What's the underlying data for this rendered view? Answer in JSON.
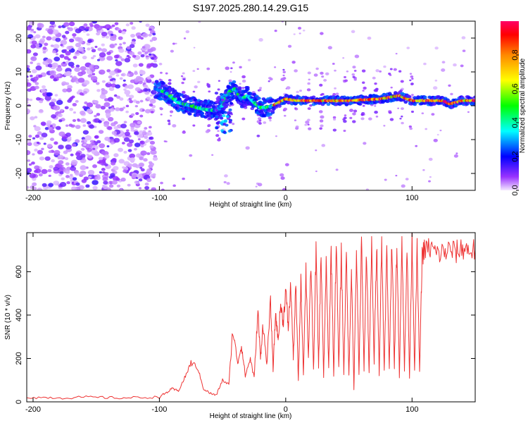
{
  "chart_data": [
    {
      "type": "heatmap",
      "title": "S197.2025.280.14.29.G15",
      "xlabel": "Height of straight line (km)",
      "ylabel": "Frequency (Hz)",
      "xlim": [
        -205,
        150
      ],
      "ylim": [
        -25,
        25
      ],
      "xticks": [
        -200,
        -100,
        0,
        100
      ],
      "yticks": [
        -20,
        -10,
        0,
        10,
        20
      ],
      "colorbar": {
        "label": "Normalized spectral amplitude",
        "range": [
          0,
          1
        ],
        "ticks": [
          0.0,
          0.2,
          0.4,
          0.6,
          0.8
        ]
      },
      "ridge": {
        "description": "dominant frequency track",
        "x": [
          -103,
          -95,
          -85,
          -75,
          -65,
          -55,
          -50,
          -45,
          -40,
          -35,
          -30,
          -25,
          -20,
          -15,
          -10,
          -5,
          0,
          10,
          25,
          50,
          75,
          90,
          100,
          110,
          125,
          130,
          140,
          150
        ],
        "y": [
          5,
          4,
          1,
          0,
          -1,
          -1.5,
          0,
          4,
          5,
          2,
          3,
          1,
          -0.5,
          -0.5,
          0,
          1,
          2,
          1.5,
          1.5,
          1.5,
          2,
          3,
          1.5,
          1.5,
          1.5,
          0.5,
          1.5,
          1.5
        ]
      }
    },
    {
      "type": "line",
      "xlabel": "Height of straight line (km)",
      "ylabel": "SNR (10 * v/v)",
      "xlim": [
        -205,
        150
      ],
      "ylim": [
        0,
        780
      ],
      "xticks": [
        -200,
        -100,
        0,
        100
      ],
      "yticks": [
        0,
        200,
        400,
        600
      ],
      "series": [
        {
          "name": "SNR",
          "color": "#ee3333",
          "x": [
            -205,
            -190,
            -175,
            -160,
            -145,
            -130,
            -115,
            -100,
            -95,
            -90,
            -85,
            -80,
            -75,
            -70,
            -65,
            -60,
            -55,
            -50,
            -45,
            -42,
            -38,
            -35,
            -32,
            -28,
            -25,
            -22,
            -20,
            -18,
            -15,
            -12,
            -10,
            -8,
            -6,
            -4,
            -2,
            0,
            2,
            4,
            6,
            8,
            10,
            12,
            14,
            16,
            18,
            20,
            22,
            24,
            26,
            28,
            30,
            32,
            34,
            36,
            38,
            40,
            42,
            44,
            46,
            48,
            50,
            52,
            54,
            56,
            58,
            60,
            62,
            64,
            66,
            68,
            70,
            72,
            74,
            76,
            78,
            80,
            82,
            84,
            86,
            88,
            90,
            92,
            94,
            96,
            98,
            100,
            102,
            104,
            106,
            108,
            110,
            115,
            120,
            125,
            130,
            135,
            140,
            145,
            150
          ],
          "y": [
            20,
            20,
            18,
            22,
            20,
            18,
            20,
            22,
            40,
            60,
            50,
            110,
            180,
            160,
            60,
            40,
            30,
            100,
            80,
            330,
            180,
            260,
            120,
            200,
            110,
            420,
            200,
            360,
            170,
            460,
            150,
            410,
            280,
            450,
            360,
            520,
            340,
            540,
            200,
            540,
            100,
            560,
            130,
            610,
            200,
            640,
            140,
            700,
            160,
            680,
            110,
            640,
            150,
            710,
            120,
            750,
            150,
            700,
            130,
            680,
            120,
            620,
            60,
            700,
            120,
            740,
            150,
            700,
            130,
            720,
            180,
            740,
            130,
            740,
            140,
            700,
            150,
            760,
            160,
            740,
            120,
            750,
            140,
            730,
            110,
            760,
            150,
            700,
            130,
            680,
            700,
            710,
            680,
            690,
            700,
            690,
            710,
            700,
            700
          ]
        }
      ]
    }
  ]
}
